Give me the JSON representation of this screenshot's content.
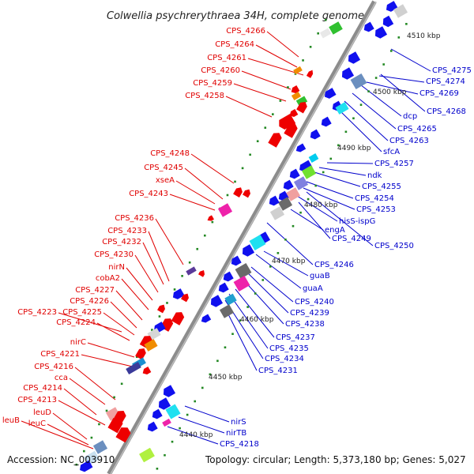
{
  "title": "Colwellia psychrerythraea 34H, complete genome",
  "footer": {
    "accession": "Accession: NC_003910",
    "summary": "Topology: circular; Length: 5,373,180 bp; Genes: 5,027"
  },
  "scale_labels": [
    "4510 kbp",
    "4500 kbp",
    "4490 kbp",
    "4480 kbp",
    "4470 kbp",
    "4460 kbp",
    "4450 kbp",
    "4440 kbp"
  ],
  "left_labels": [
    "CPS_4266",
    "CPS_4264",
    "CPS_4261",
    "CPS_4260",
    "CPS_4259",
    "CPS_4258",
    "CPS_4248",
    "CPS_4245",
    "xseA",
    "CPS_4243",
    "CPS_4236",
    "CPS_4233",
    "CPS_4232",
    "CPS_4230",
    "nirN",
    "cobA2",
    "CPS_4227",
    "CPS_4226",
    "CPS_4223",
    "CPS_4225",
    "CPS_4224",
    "nirC",
    "CPS_4221",
    "CPS_4216",
    "cca",
    "CPS_4214",
    "CPS_4213",
    "leuD",
    "leuB",
    "leuC"
  ],
  "right_labels": [
    "CPS_4275",
    "CPS_4274",
    "CPS_4269",
    "CPS_4268",
    "dcp",
    "CPS_4265",
    "CPS_4263",
    "sfcA",
    "CPS_4257",
    "ndk",
    "CPS_4255",
    "CPS_4254",
    "CPS_4253",
    "hisS-ispG",
    "engA",
    "CPS_4249",
    "CPS_4250",
    "CPS_4246",
    "guaB",
    "guaA",
    "CPS_4240",
    "CPS_4239",
    "CPS_4238",
    "CPS_4237",
    "CPS_4235",
    "CPS_4234",
    "CPS_4231",
    "nirS",
    "nirTB",
    "CPS_4218"
  ],
  "colors": {
    "left_label": "#e00000",
    "right_label": "#0000cc",
    "backbone": "#8c8c8c",
    "red_gene": "#ee0000",
    "blue_gene": "#1010ee",
    "tick": "#228822"
  }
}
